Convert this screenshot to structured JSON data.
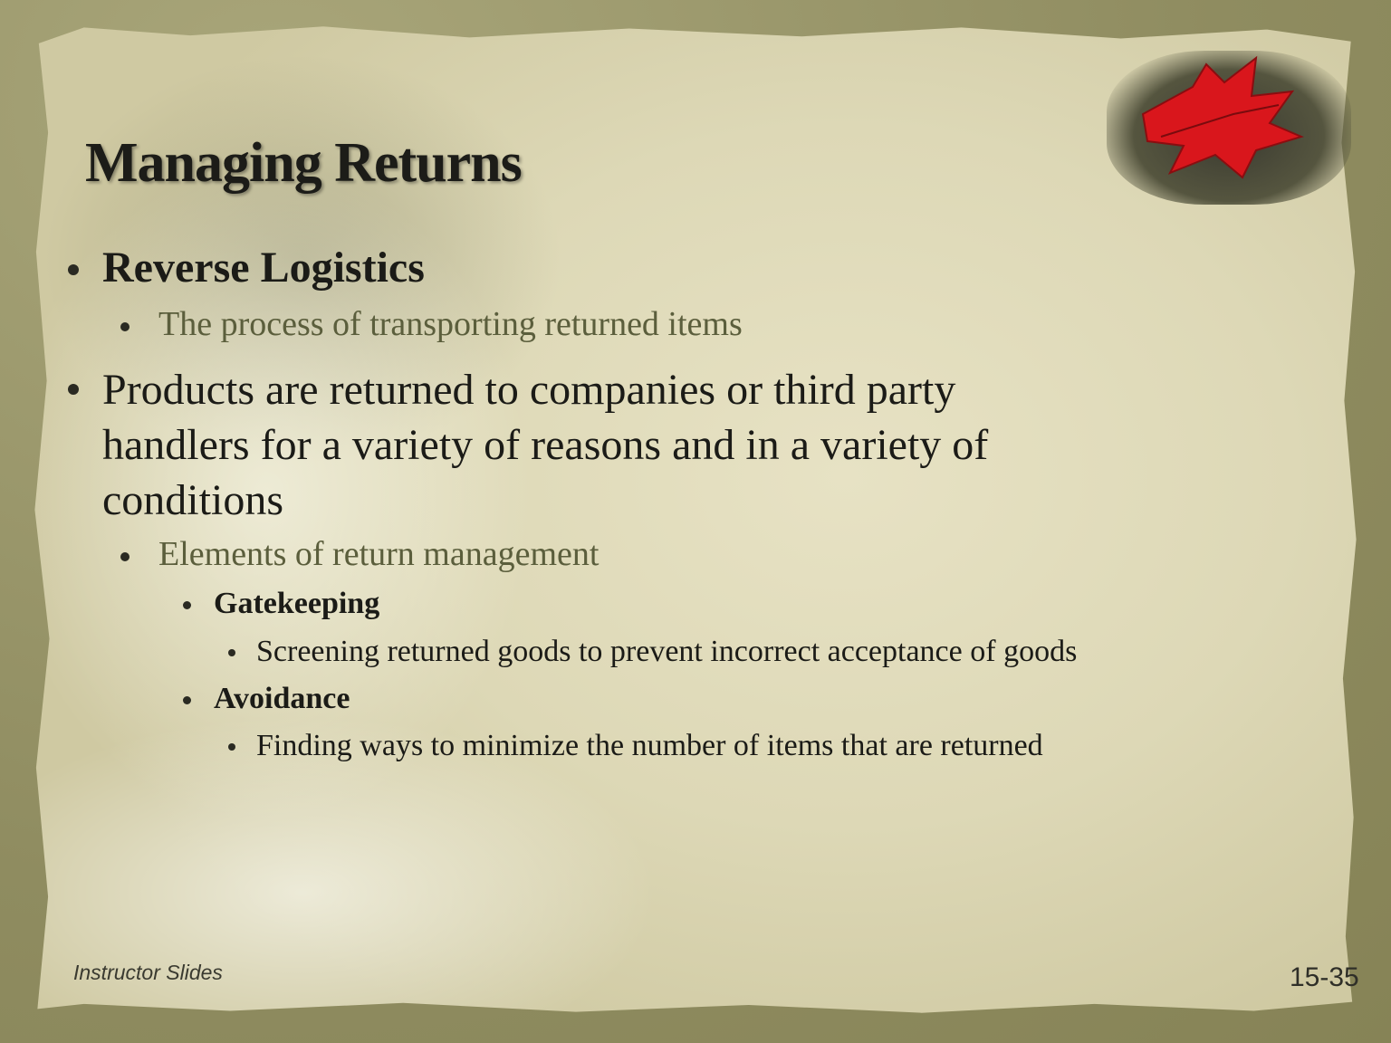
{
  "slide": {
    "title": "Managing Returns",
    "bullets": [
      {
        "text": "Reverse Logistics"
      },
      {
        "text": "The process of transporting returned items"
      },
      {
        "lines": [
          "Products are returned to companies or third party",
          "handlers for a variety of reasons and in a variety of",
          "conditions"
        ]
      },
      {
        "text": "Elements of return management"
      },
      {
        "text": "Gatekeeping"
      },
      {
        "text": "Screening returned goods to prevent incorrect acceptance of goods"
      },
      {
        "text": "Avoidance"
      },
      {
        "text": "Finding ways to minimize the number of items that are returned"
      }
    ],
    "footer_left": "Instructor Slides",
    "slide_number": "15-35"
  },
  "colors": {
    "title": "#1c1c18",
    "body_text": "#1b1b17",
    "subtext": "#5b5e3c",
    "paper": "#e2ddbd",
    "frame": "#9c9a6e",
    "leaf": "#d9161c"
  },
  "icons": [
    "maple-leaf-photo",
    "bullet-dot"
  ]
}
